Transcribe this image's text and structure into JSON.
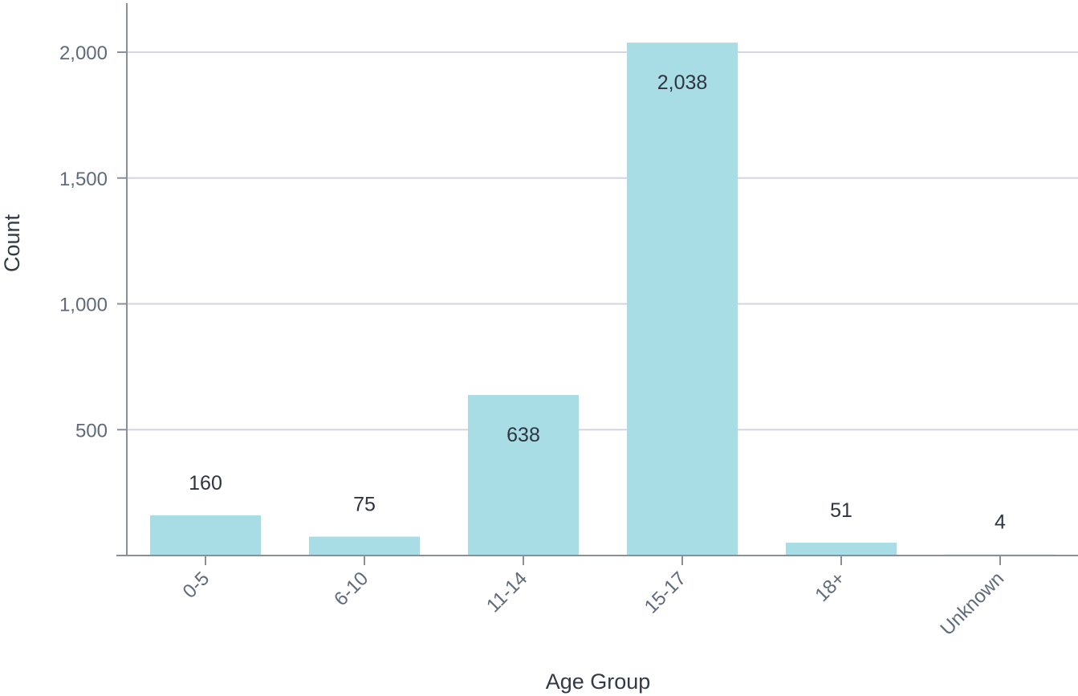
{
  "chart_data": {
    "type": "bar",
    "categories": [
      "0-5",
      "6-10",
      "11-14",
      "15-17",
      "18+",
      "Unknown"
    ],
    "values": [
      160,
      75,
      638,
      2038,
      51,
      4
    ],
    "data_labels": [
      "160",
      "75",
      "638",
      "2,038",
      "51",
      "4"
    ],
    "xlabel": "Age Group",
    "ylabel": "Count",
    "ylim": [
      0,
      2200
    ],
    "yticks": [
      500,
      1000,
      1500,
      2000
    ],
    "ytick_labels": [
      "500",
      "1,000",
      "1,500",
      "2,000"
    ],
    "grid": true,
    "bar_color": "#a8dde6",
    "x_tick_rotation": -45
  }
}
